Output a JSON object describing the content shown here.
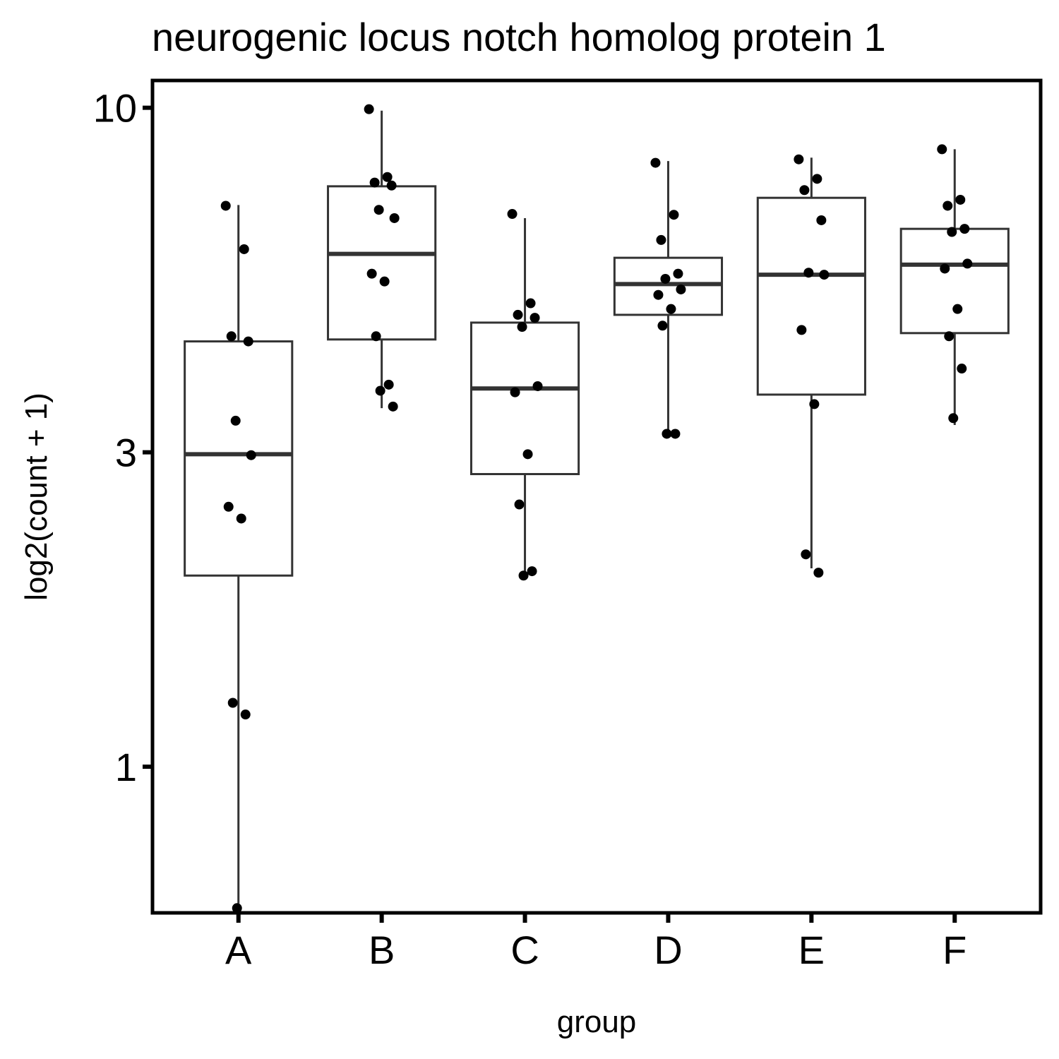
{
  "chart_data": {
    "type": "box",
    "title": "neurogenic locus notch homolog protein 1",
    "xlabel": "group",
    "ylabel": "log2(count + 1)",
    "y_scale": "log",
    "ylim": [
      0.6,
      11
    ],
    "y_ticks": [
      {
        "value": 1,
        "label": "1"
      },
      {
        "value": 3,
        "label": "3"
      },
      {
        "value": 10,
        "label": "10"
      }
    ],
    "grid": false,
    "legend": "none",
    "categories": [
      "A",
      "B",
      "C",
      "D",
      "E",
      "F"
    ],
    "boxes": [
      {
        "category": "A",
        "whisker_low": 0.62,
        "q1": 1.95,
        "median": 2.98,
        "q3": 4.42,
        "whisker_high": 7.12
      },
      {
        "category": "B",
        "whisker_low": 3.5,
        "q1": 4.45,
        "median": 6.0,
        "q3": 7.6,
        "whisker_high": 9.9
      },
      {
        "category": "C",
        "whisker_low": 1.95,
        "q1": 2.78,
        "median": 3.75,
        "q3": 4.72,
        "whisker_high": 6.8
      },
      {
        "category": "D",
        "whisker_low": 3.18,
        "q1": 4.85,
        "median": 5.4,
        "q3": 5.92,
        "whisker_high": 8.3
      },
      {
        "category": "E",
        "whisker_low": 2.0,
        "q1": 3.67,
        "median": 5.58,
        "q3": 7.3,
        "whisker_high": 8.4
      },
      {
        "category": "F",
        "whisker_low": 3.3,
        "q1": 4.55,
        "median": 5.78,
        "q3": 6.55,
        "whisker_high": 8.65
      }
    ],
    "points": [
      {
        "category": "A",
        "values": [
          7.1,
          6.1,
          4.5,
          4.42,
          3.35,
          2.97,
          2.48,
          2.38,
          1.25,
          1.2,
          0.61
        ]
      },
      {
        "category": "B",
        "values": [
          9.95,
          7.85,
          7.7,
          7.62,
          7.0,
          6.8,
          5.6,
          5.45,
          4.5,
          3.8,
          3.72,
          3.52
        ]
      },
      {
        "category": "C",
        "values": [
          6.9,
          5.05,
          4.85,
          4.8,
          4.65,
          3.78,
          3.7,
          2.98,
          2.5,
          1.98,
          1.95
        ]
      },
      {
        "category": "D",
        "values": [
          8.25,
          6.88,
          6.3,
          5.6,
          5.5,
          5.3,
          5.2,
          4.95,
          4.67,
          3.2,
          3.2
        ]
      },
      {
        "category": "E",
        "values": [
          8.35,
          7.8,
          7.5,
          6.75,
          5.62,
          5.58,
          4.6,
          3.55,
          2.1,
          1.97
        ]
      },
      {
        "category": "F",
        "values": [
          8.65,
          7.25,
          7.1,
          6.55,
          6.48,
          5.8,
          5.7,
          4.95,
          4.5,
          4.02,
          3.38
        ]
      }
    ],
    "colors": {
      "box_line": "#333333",
      "points": "#000000",
      "frame": "#000000",
      "background": "#ffffff"
    }
  }
}
